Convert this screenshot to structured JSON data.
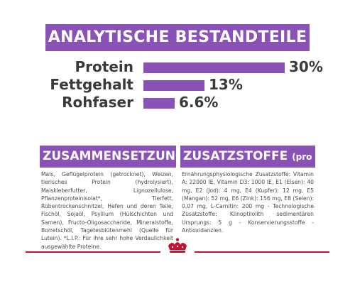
{
  "header": {
    "title": "ANALYTISCHE BESTANDTEILE"
  },
  "analysis": [
    {
      "label": "Protein",
      "value": "30%",
      "fraction": 0.3
    },
    {
      "label": "Fettgehalt",
      "value": "13%",
      "fraction": 0.13
    },
    {
      "label": "Rohfaser",
      "value": "6.6%",
      "fraction": 0.066
    }
  ],
  "composition": {
    "title": "ZUSAMMENSETZUNG",
    "text": "Mais, Geflügelprotein (getrocknet), Weizen, tierisches Protein (hydrolysiert), Maiskleberfutter, Lignozellulose, Pflanzenproteinisolat*, Tierfett, Rübentrockenschnitzel, Hefen und deren Teile, Fischöl, Sojaöl, Psyllium (Hülschichten und Samen), Fructo-Oligosaccharide, Mineralstoffe, Borretschöl, Tagetesblütenmehl (Quelle für Lutein). *L.I.P.: Für ihre sehr hohe Verdaulichkeit ausgewählte Proteine."
  },
  "additives": {
    "title": "ZUSATZSTOFFE",
    "title_suffix": "(pro kg)",
    "text": "Ernährungsphysiologische Zusatzstoffe: Vitamin A: 22000 IE, Vitamin D3: 1000 IE, E1 (Eisen): 40 mg, E2 (Jod): 4 mg, E4 (Kupfer): 12 mg, E5 (Mangan): 52 mg, E6 (Zink): 156 mg, E8 (Selen): 0,07 mg, L-Carnitin: 200 mg - Technologische Zusatzstoffe: Klinoptilolith sedimentären Ursprungs: 5 g - Konservierungsstoffe - Antioxidanzien."
  },
  "footer": {
    "logo_icon": "crown-logo-icon"
  },
  "colors": {
    "accent": "#8a52b6",
    "text": "#3a3a3a",
    "footer_line": "#c8102e"
  }
}
